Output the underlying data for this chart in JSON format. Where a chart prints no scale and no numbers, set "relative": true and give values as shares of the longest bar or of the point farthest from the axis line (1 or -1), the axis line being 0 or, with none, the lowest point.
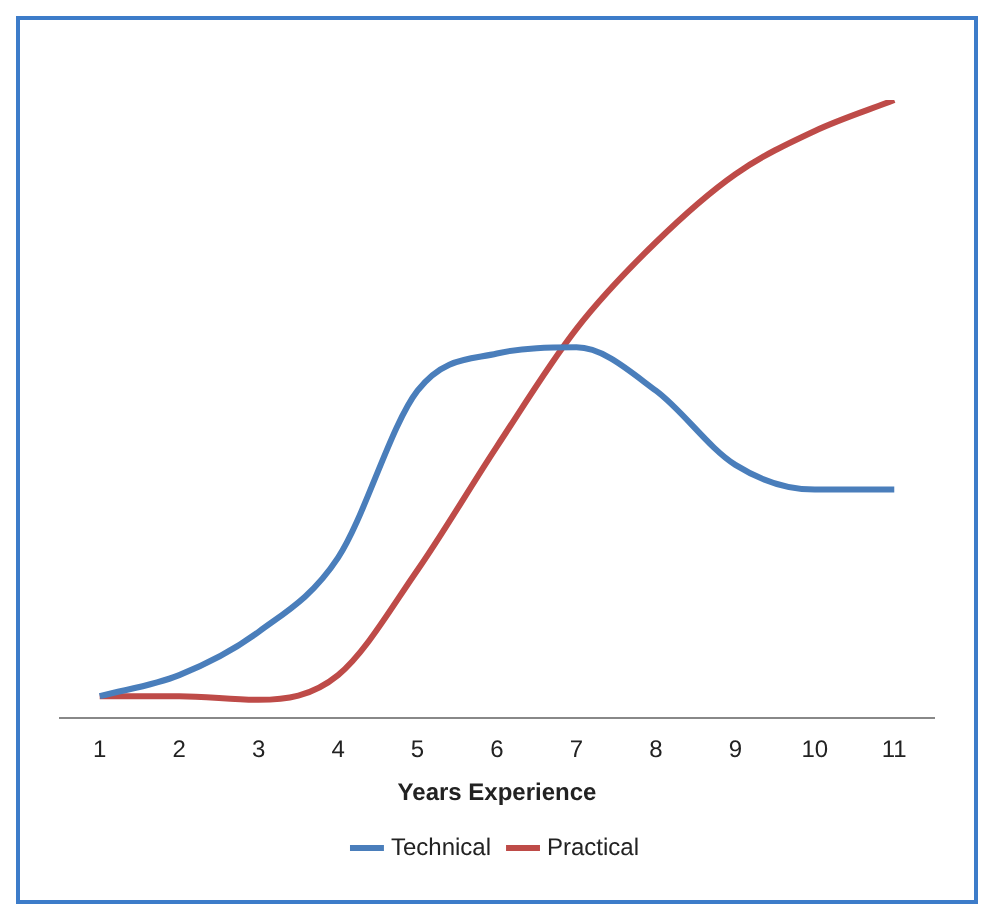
{
  "chart_data": {
    "type": "line",
    "xlabel": "Years Experience",
    "categories": [
      "1",
      "2",
      "3",
      "4",
      "5",
      "6",
      "7",
      "8",
      "9",
      "10",
      "11"
    ],
    "relative": true,
    "legend": "bottom",
    "grid": false,
    "marker": "none",
    "series": [
      {
        "name": "Technical",
        "color": "#4a7ebb",
        "values": [
          0.036,
          0.07,
          0.14,
          0.26,
          0.53,
          0.59,
          0.6,
          0.53,
          0.41,
          0.37,
          0.37
        ]
      },
      {
        "name": "Practical",
        "color": "#be4b48",
        "values": [
          0.036,
          0.036,
          0.03,
          0.07,
          0.24,
          0.44,
          0.63,
          0.77,
          0.88,
          0.95,
          1
        ]
      }
    ]
  }
}
